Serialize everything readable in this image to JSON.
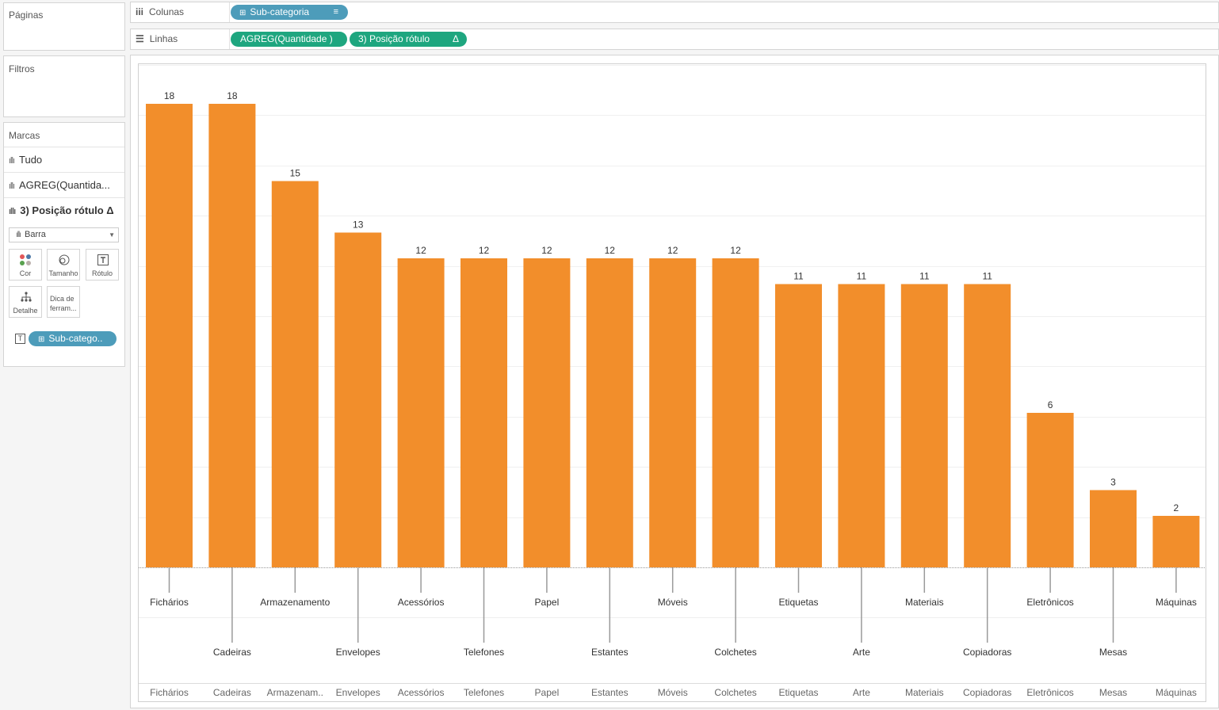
{
  "panels": {
    "pages_title": "Páginas",
    "filters_title": "Filtros",
    "marks_title": "Marcas"
  },
  "shelves": {
    "columns_label": "Colunas",
    "columns_pill": "Sub-categoria",
    "rows_label": "Linhas",
    "rows_pills": [
      "AGREG(Quantidade )",
      "3) Posição rótulo"
    ]
  },
  "marks": {
    "cards": [
      "Tudo",
      "AGREG(Quantida...",
      "3) Posição rótulo Δ"
    ],
    "mark_type": "Barra",
    "buttons": [
      "Cor",
      "Tamanho",
      "Rótulo",
      "Detalhe",
      "Dica de ferram..."
    ],
    "label_pill": "Sub-catego.."
  },
  "chart_data": {
    "type": "bar",
    "categories": [
      "Fichários",
      "Cadeiras",
      "Armazenamento",
      "Envelopes",
      "Acessórios",
      "Telefones",
      "Papel",
      "Estantes",
      "Móveis",
      "Colchetes",
      "Etiquetas",
      "Arte",
      "Materiais",
      "Copiadoras",
      "Eletrônicos",
      "Mesas",
      "Máquinas"
    ],
    "values": [
      18,
      18,
      15,
      13,
      12,
      12,
      12,
      12,
      12,
      12,
      11,
      11,
      11,
      11,
      6,
      3,
      2
    ],
    "data_labels": [
      "18",
      "18",
      "15",
      "13",
      "12",
      "12",
      "12",
      "12",
      "12",
      "12",
      "11",
      "11",
      "11",
      "11",
      "6",
      "3",
      "2"
    ],
    "label_rows": [
      0,
      1,
      0,
      1,
      0,
      1,
      0,
      1,
      0,
      1,
      0,
      1,
      0,
      1,
      0,
      1,
      0
    ],
    "axis_labels": [
      "Fichários",
      "Cadeiras",
      "Armazenam..",
      "Envelopes",
      "Acessórios",
      "Telefones",
      "Papel",
      "Estantes",
      "Móveis",
      "Colchetes",
      "Etiquetas",
      "Arte",
      "Materiais",
      "Copiadoras",
      "Eletrônicos",
      "Mesas",
      "Máquinas"
    ],
    "bar_color": "#f28e2b",
    "grid": true
  }
}
